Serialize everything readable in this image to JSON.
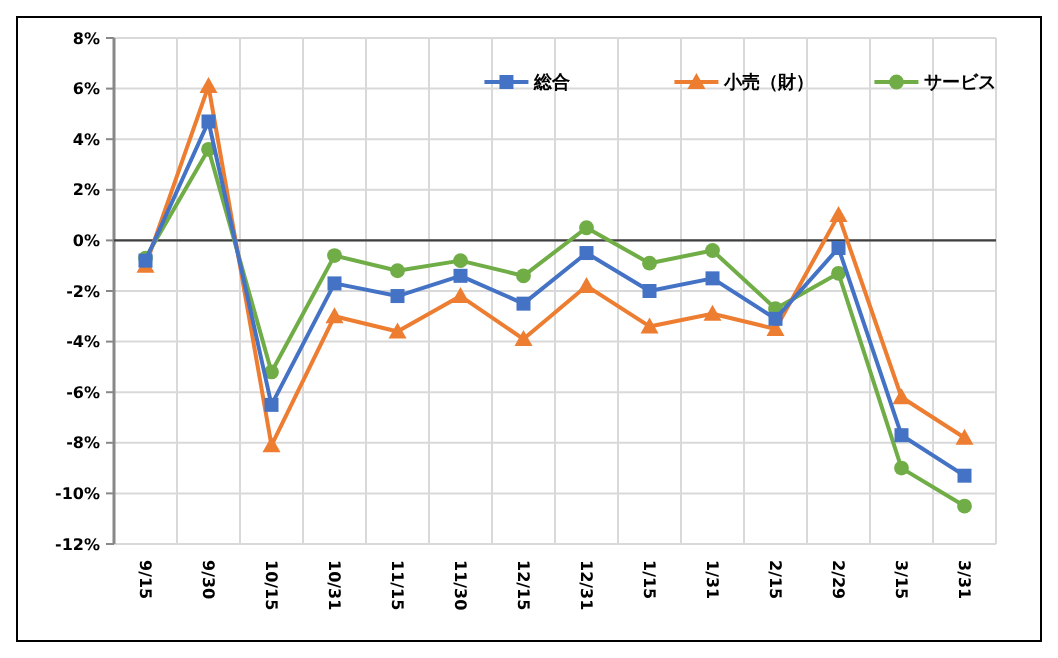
{
  "chart_data": {
    "type": "line",
    "categories": [
      "9/15",
      "9/30",
      "10/15",
      "10/31",
      "11/15",
      "11/30",
      "12/15",
      "12/31",
      "1/15",
      "1/31",
      "2/15",
      "2/29",
      "3/15",
      "3/31"
    ],
    "series": [
      {
        "name": "総合",
        "color": "#4472c4",
        "marker": "square",
        "values": [
          -0.8,
          4.7,
          -6.5,
          -1.7,
          -2.2,
          -1.4,
          -2.5,
          -0.5,
          -2.0,
          -1.5,
          -3.1,
          -0.3,
          -7.7,
          -9.3
        ]
      },
      {
        "name": "小売（財）",
        "color": "#ed7d31",
        "marker": "triangle",
        "values": [
          -1.0,
          6.1,
          -8.1,
          -3.0,
          -3.6,
          -2.2,
          -3.9,
          -1.8,
          -3.4,
          -2.9,
          -3.5,
          1.0,
          -6.2,
          -7.8
        ]
      },
      {
        "name": "サービス",
        "color": "#70ad47",
        "marker": "circle",
        "values": [
          -0.7,
          3.6,
          -5.2,
          -0.6,
          -1.2,
          -0.8,
          -1.4,
          0.5,
          -0.9,
          -0.4,
          -2.7,
          -1.3,
          -9.0,
          -10.5
        ]
      }
    ],
    "ylim": [
      -12,
      8
    ],
    "yticks": [
      {
        "value": -12,
        "label": "-12%"
      },
      {
        "value": -10,
        "label": "-10%"
      },
      {
        "value": -8,
        "label": "-8%"
      },
      {
        "value": -6,
        "label": "-6%"
      },
      {
        "value": -4,
        "label": "-4%"
      },
      {
        "value": -2,
        "label": "-2%"
      },
      {
        "value": 0,
        "label": "0%"
      },
      {
        "value": 2,
        "label": "2%"
      },
      {
        "value": 4,
        "label": "4%"
      },
      {
        "value": 6,
        "label": "6%"
      },
      {
        "value": 8,
        "label": "8%"
      }
    ],
    "ref_lines": [
      {
        "axis": "y",
        "value": 0,
        "color": "#404040"
      }
    ],
    "grid": true,
    "legend": "top right",
    "line_style": "solid"
  }
}
